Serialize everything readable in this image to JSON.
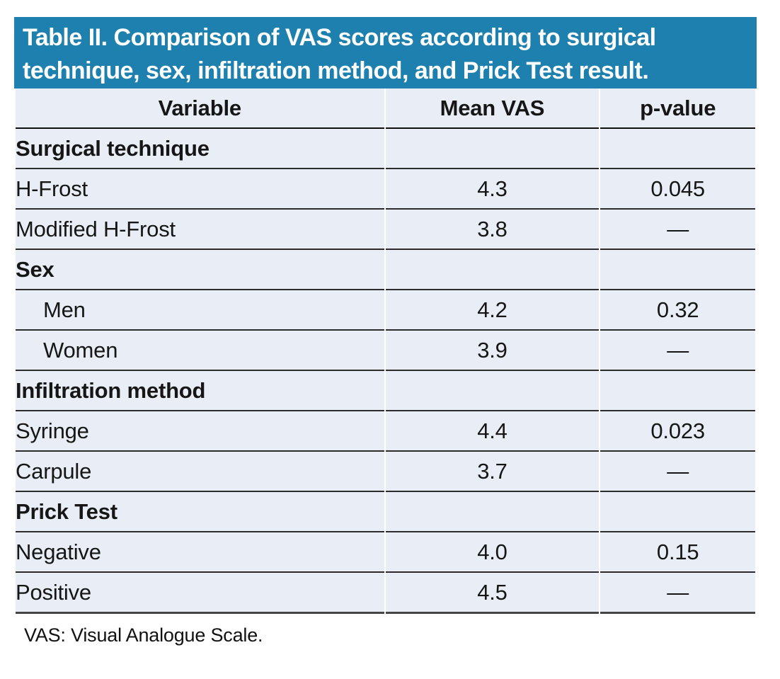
{
  "title_lines": [
    "Table II. Comparison of VAS scores according to surgical",
    "technique, sex, infiltration method, and Prick Test result."
  ],
  "columns": [
    "Variable",
    "Mean VAS",
    "p-value"
  ],
  "table": {
    "rows": [
      {
        "type": "section",
        "variable": "Surgical technique",
        "mean_vas": "",
        "p_value": ""
      },
      {
        "type": "data",
        "variable": "H-Frost",
        "mean_vas": "4.3",
        "p_value": "0.045"
      },
      {
        "type": "data",
        "variable": "Modified H-Frost",
        "mean_vas": "3.8",
        "p_value": "—"
      },
      {
        "type": "section",
        "variable": "Sex",
        "mean_vas": "",
        "p_value": ""
      },
      {
        "type": "data",
        "indent": "shallow",
        "variable": "Men",
        "mean_vas": "4.2",
        "p_value": "0.32"
      },
      {
        "type": "data",
        "indent": "shallow",
        "variable": "Women",
        "mean_vas": "3.9",
        "p_value": "—"
      },
      {
        "type": "section",
        "variable": "Infiltration method",
        "mean_vas": "",
        "p_value": ""
      },
      {
        "type": "data",
        "variable": "Syringe",
        "mean_vas": "4.4",
        "p_value": "0.023"
      },
      {
        "type": "data",
        "variable": "Carpule",
        "mean_vas": "3.7",
        "p_value": "—"
      },
      {
        "type": "section",
        "variable": "Prick Test",
        "mean_vas": "",
        "p_value": ""
      },
      {
        "type": "data",
        "variable": "Negative",
        "mean_vas": "4.0",
        "p_value": "0.15"
      },
      {
        "type": "data",
        "variable": "Positive",
        "mean_vas": "4.5",
        "p_value": "—"
      }
    ]
  },
  "footnote": "VAS: Visual Analogue Scale.",
  "colors": {
    "title_bar_bg": "#1d80ae",
    "title_text": "#ffffff",
    "row_bg": "#e9eef6",
    "rule_dark": "#101010",
    "rule_row": "#2c2c2c",
    "rule_bottom": "#454545"
  }
}
